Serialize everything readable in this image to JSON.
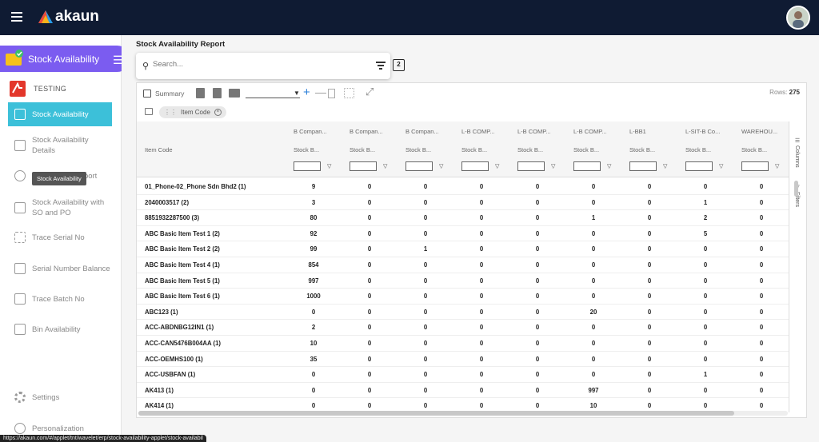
{
  "app": {
    "logo_text": "akaun"
  },
  "sidebar": {
    "app_label": "Stock Availability",
    "org_label": "TESTING",
    "items": [
      {
        "label": "Stock Availability",
        "icon": "inventory-icon",
        "active": true
      },
      {
        "label": "Stock Availability Details",
        "icon": "details-icon",
        "active": false
      },
      {
        "label": "Stock Aging Report",
        "icon": "clock-icon",
        "active": false
      },
      {
        "label": "Stock Availability with SO and PO",
        "icon": "inventory-icon",
        "active": false
      },
      {
        "label": "Trace Serial No",
        "icon": "barcode-icon",
        "active": false
      },
      {
        "label": "Serial Number Balance",
        "icon": "balance-icon",
        "active": false
      },
      {
        "label": "Trace Batch No",
        "icon": "inventory-icon",
        "active": false
      },
      {
        "label": "Bin Availability",
        "icon": "list-icon",
        "active": false
      }
    ],
    "settings_label": "Settings",
    "personalization_label": "Personalization",
    "tooltip": "Stock Availability"
  },
  "report": {
    "title": "Stock Availability Report",
    "search_placeholder": "Search..."
  },
  "toolbar": {
    "summary_label": "Summary",
    "rows_label": "Rows:",
    "rows_value": "275"
  },
  "group": {
    "chip_label": "Item Code"
  },
  "columns": [
    {
      "group": "",
      "label": "Item Code"
    },
    {
      "group": "B Compan...",
      "label": "Stock B..."
    },
    {
      "group": "B Compan...",
      "label": "Stock B..."
    },
    {
      "group": "B Compan...",
      "label": "Stock B..."
    },
    {
      "group": "L-B COMP...",
      "label": "Stock B..."
    },
    {
      "group": "L-B COMP...",
      "label": "Stock B..."
    },
    {
      "group": "L-B COMP...",
      "label": "Stock B..."
    },
    {
      "group": "L-BB1",
      "label": "Stock B..."
    },
    {
      "group": "L-SIT-B Co...",
      "label": "Stock B..."
    },
    {
      "group": "WAREHOU...",
      "label": "Stock B..."
    }
  ],
  "rows": [
    [
      "01_Phone-02_Phone Sdn Bhd2 (1)",
      "9",
      "0",
      "0",
      "0",
      "0",
      "0",
      "0",
      "0",
      "0"
    ],
    [
      "2040003517 (2)",
      "3",
      "0",
      "0",
      "0",
      "0",
      "0",
      "0",
      "1",
      "0"
    ],
    [
      "8851932287500 (3)",
      "80",
      "0",
      "0",
      "0",
      "0",
      "1",
      "0",
      "2",
      "0"
    ],
    [
      "ABC Basic Item Test 1 (2)",
      "92",
      "0",
      "0",
      "0",
      "0",
      "0",
      "0",
      "5",
      "0"
    ],
    [
      "ABC Basic Item Test 2 (2)",
      "99",
      "0",
      "1",
      "0",
      "0",
      "0",
      "0",
      "0",
      "0"
    ],
    [
      "ABC Basic Item Test 4 (1)",
      "854",
      "0",
      "0",
      "0",
      "0",
      "0",
      "0",
      "0",
      "0"
    ],
    [
      "ABC Basic Item Test 5 (1)",
      "997",
      "0",
      "0",
      "0",
      "0",
      "0",
      "0",
      "0",
      "0"
    ],
    [
      "ABC Basic Item Test 6 (1)",
      "1000",
      "0",
      "0",
      "0",
      "0",
      "0",
      "0",
      "0",
      "0"
    ],
    [
      "ABC123 (1)",
      "0",
      "0",
      "0",
      "0",
      "0",
      "20",
      "0",
      "0",
      "0"
    ],
    [
      "ACC-ABDNBG12IN1 (1)",
      "2",
      "0",
      "0",
      "0",
      "0",
      "0",
      "0",
      "0",
      "0"
    ],
    [
      "ACC-CAN5476B004AA (1)",
      "10",
      "0",
      "0",
      "0",
      "0",
      "0",
      "0",
      "0",
      "0"
    ],
    [
      "ACC-OEMHS100 (1)",
      "35",
      "0",
      "0",
      "0",
      "0",
      "0",
      "0",
      "0",
      "0"
    ],
    [
      "ACC-USBFAN (1)",
      "0",
      "0",
      "0",
      "0",
      "0",
      "0",
      "0",
      "1",
      "0"
    ],
    [
      "AK413 (1)",
      "0",
      "0",
      "0",
      "0",
      "0",
      "997",
      "0",
      "0",
      "0"
    ],
    [
      "AK414 (1)",
      "0",
      "0",
      "0",
      "0",
      "0",
      "10",
      "0",
      "0",
      "0"
    ]
  ],
  "side_tabs": {
    "columns": "Columns",
    "filters": "Filters"
  },
  "status_url": "https://akaun.com/#/applet/tnt/wavelet/erp/stock-availability-applet/stock-availabil"
}
